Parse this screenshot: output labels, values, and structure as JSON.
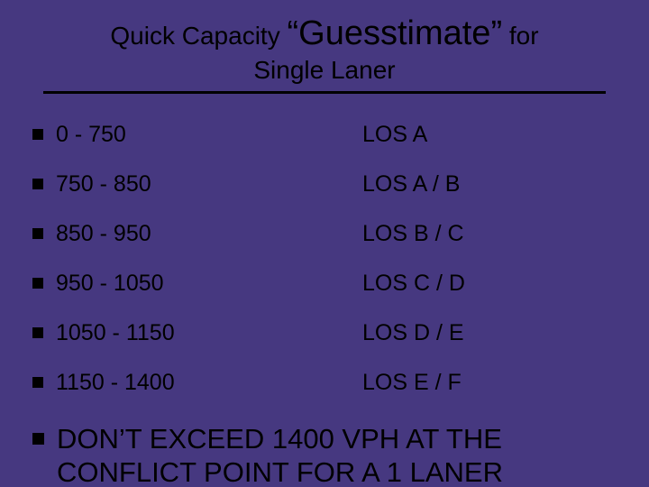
{
  "colors": {
    "background": "#463880",
    "text": "#000000",
    "rule": "#000000",
    "bullet": "#000000"
  },
  "typography": {
    "family": "Arial",
    "title_small_pt": 21,
    "title_em_pt": 28,
    "row_pt": 19,
    "note_pt": 23
  },
  "title": {
    "pre": "Quick  Capacity ",
    "em": "“Guesstimate”",
    "post": " for",
    "line2": "Single Laner"
  },
  "rows": [
    {
      "range": "0 - 750",
      "los": "LOS A"
    },
    {
      "range": "750 - 850",
      "los": "LOS A / B"
    },
    {
      "range": "850 - 950",
      "los": "LOS B / C"
    },
    {
      "range": "950 - 1050",
      "los": "LOS C / D"
    },
    {
      "range": "1050 - 1150",
      "los": "LOS D / E"
    },
    {
      "range": "1150 - 1400",
      "los": "LOS E / F"
    }
  ],
  "note": "DON’T EXCEED 1400 VPH AT THE CONFLICT POINT FOR A 1 LANER"
}
